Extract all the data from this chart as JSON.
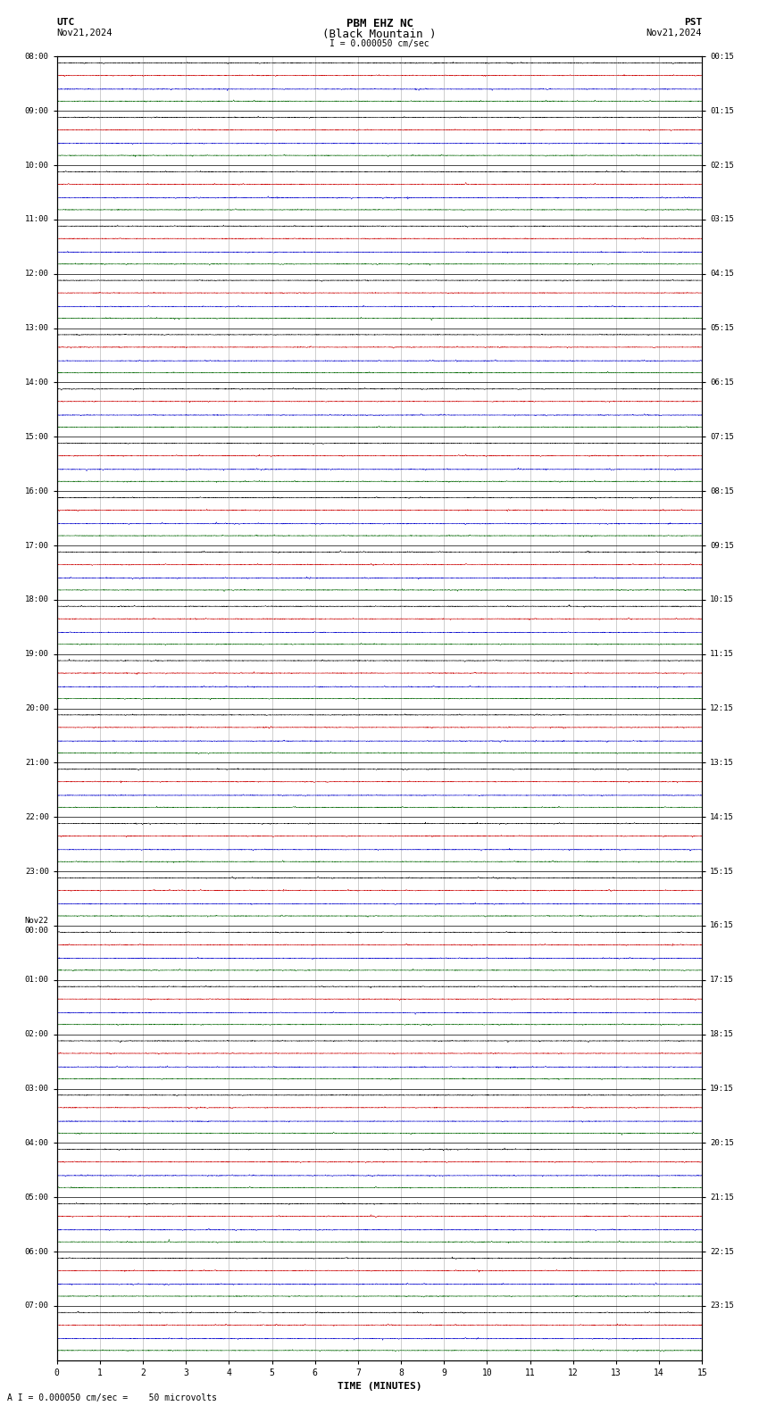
{
  "title_line1": "PBM EHZ NC",
  "title_line2": "(Black Mountain )",
  "scale_label": "I = 0.000050 cm/sec",
  "utc_label": "UTC",
  "pst_label": "PST",
  "date_left_top": "Nov21,2024",
  "date_right_top": "Nov21,2024",
  "bottom_label": "A I = 0.000050 cm/sec =    50 microvolts",
  "utc_times": [
    "08:00",
    "09:00",
    "10:00",
    "11:00",
    "12:00",
    "13:00",
    "14:00",
    "15:00",
    "16:00",
    "17:00",
    "18:00",
    "19:00",
    "20:00",
    "21:00",
    "22:00",
    "23:00",
    "Nov22\n00:00",
    "01:00",
    "02:00",
    "03:00",
    "04:00",
    "05:00",
    "06:00",
    "07:00"
  ],
  "pst_times": [
    "00:15",
    "01:15",
    "02:15",
    "03:15",
    "04:15",
    "05:15",
    "06:15",
    "07:15",
    "08:15",
    "09:15",
    "10:15",
    "11:15",
    "12:15",
    "13:15",
    "14:15",
    "15:15",
    "16:15",
    "17:15",
    "18:15",
    "19:15",
    "20:15",
    "21:15",
    "22:15",
    "23:15"
  ],
  "num_rows": 24,
  "traces_per_row": 4,
  "trace_colors": [
    "#000000",
    "#cc0000",
    "#0000cc",
    "#006600"
  ],
  "bg_color": "#ffffff",
  "grid_color": "#aaaaaa",
  "border_color": "#000000",
  "time_minutes": 15,
  "noise_amplitude": 0.006,
  "fig_width": 8.5,
  "fig_height": 15.84
}
